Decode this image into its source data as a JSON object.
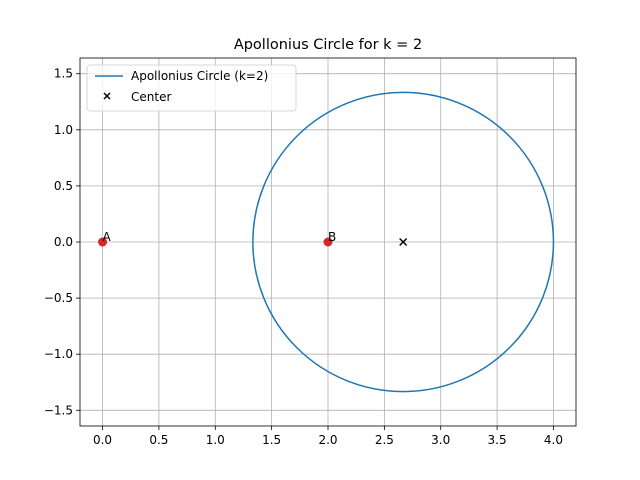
{
  "chart_data": {
    "type": "line",
    "title": "Apollonius Circle for k = 2",
    "xlabel": "",
    "ylabel": "",
    "xlim": [
      -0.2,
      4.2
    ],
    "ylim": [
      -1.64,
      1.64
    ],
    "xticks": [
      0.0,
      0.5,
      1.0,
      1.5,
      2.0,
      2.5,
      3.0,
      3.5,
      4.0
    ],
    "yticks": [
      -1.5,
      -1.0,
      -0.5,
      0.0,
      0.5,
      1.0,
      1.5
    ],
    "xtick_labels": [
      "0.0",
      "0.5",
      "1.0",
      "1.5",
      "2.0",
      "2.5",
      "3.0",
      "3.5",
      "4.0"
    ],
    "ytick_labels": [
      "−1.5",
      "−1.0",
      "−0.5",
      "0.0",
      "0.5",
      "1.0",
      "1.5"
    ],
    "grid": true,
    "legend_position": "top-left",
    "circle": {
      "label": "Apollonius Circle (k=2)",
      "center": [
        2.6667,
        0.0
      ],
      "radius": 1.3333,
      "color": "#1f77b4"
    },
    "center_marker": {
      "label": "Center",
      "x": 2.6667,
      "y": 0.0,
      "marker": "x",
      "color": "#000000"
    },
    "points": [
      {
        "label": "A",
        "x": 0.0,
        "y": 0.0,
        "color": "#d62728"
      },
      {
        "label": "B",
        "x": 2.0,
        "y": 0.0,
        "color": "#d62728"
      }
    ]
  }
}
